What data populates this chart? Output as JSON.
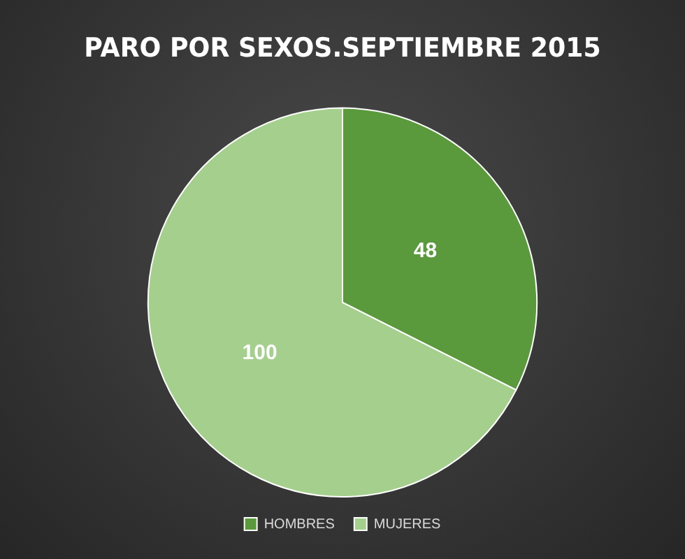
{
  "chart_data": {
    "type": "pie",
    "title": "PARO POR SEXOS.SEPTIEMBRE 2015",
    "categories": [
      "HOMBRES",
      "MUJERES"
    ],
    "values": [
      48,
      100
    ],
    "colors": [
      "#5b9a3c",
      "#a5cf8d"
    ],
    "data_labels": true,
    "legend": "bottom"
  }
}
